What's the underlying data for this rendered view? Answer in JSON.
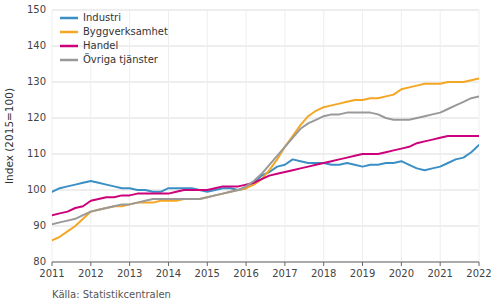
{
  "chart_data": {
    "type": "line",
    "ylabel": "Index (2015=100)",
    "source": "Källa: Statistikcentralen",
    "xlim": [
      2011,
      2022
    ],
    "xticks": [
      2011,
      2012,
      2013,
      2014,
      2015,
      2016,
      2017,
      2018,
      2019,
      2020,
      2021,
      2022
    ],
    "ylim": [
      80,
      150
    ],
    "yticks": [
      80,
      90,
      100,
      110,
      120,
      130,
      140,
      150
    ],
    "grid": true,
    "legend": "upper-left",
    "x": [
      2011.0,
      2011.2,
      2011.4,
      2011.6,
      2011.8,
      2012.0,
      2012.2,
      2012.4,
      2012.6,
      2012.8,
      2013.0,
      2013.2,
      2013.4,
      2013.6,
      2013.8,
      2014.0,
      2014.2,
      2014.4,
      2014.6,
      2014.8,
      2015.0,
      2015.2,
      2015.4,
      2015.6,
      2015.8,
      2016.0,
      2016.2,
      2016.4,
      2016.6,
      2016.8,
      2017.0,
      2017.2,
      2017.4,
      2017.6,
      2017.8,
      2018.0,
      2018.2,
      2018.4,
      2018.6,
      2018.8,
      2019.0,
      2019.2,
      2019.4,
      2019.6,
      2019.8,
      2020.0,
      2020.2,
      2020.4,
      2020.6,
      2020.8,
      2021.0,
      2021.2,
      2021.4,
      2021.6,
      2021.8,
      2022.0
    ],
    "series": [
      {
        "name": "Industri",
        "color": "#3b8fc4",
        "values": [
          99.5,
          100.5,
          101.0,
          101.5,
          102.0,
          102.5,
          102.0,
          101.5,
          101.0,
          100.5,
          100.5,
          100.0,
          100.0,
          99.5,
          99.5,
          100.5,
          100.5,
          100.5,
          100.5,
          100.0,
          99.5,
          100.0,
          100.5,
          100.5,
          100.0,
          100.5,
          102.0,
          104.0,
          105.0,
          106.5,
          107.0,
          108.5,
          108.0,
          107.5,
          107.5,
          107.5,
          107.0,
          107.0,
          107.5,
          107.0,
          106.5,
          107.0,
          107.0,
          107.5,
          107.5,
          108.0,
          107.0,
          106.0,
          105.5,
          106.0,
          106.5,
          107.5,
          108.5,
          109.0,
          110.5,
          112.5
        ]
      },
      {
        "name": "Byggverksamhet",
        "color": "#f5a623",
        "values": [
          86.0,
          87.0,
          88.5,
          90.0,
          92.0,
          94.0,
          94.5,
          95.0,
          95.5,
          95.5,
          96.0,
          96.5,
          96.5,
          96.5,
          97.0,
          97.0,
          97.0,
          97.5,
          97.5,
          97.5,
          98.0,
          98.5,
          99.0,
          99.5,
          100.0,
          100.5,
          101.5,
          103.0,
          105.5,
          108.5,
          112.0,
          115.0,
          118.0,
          120.5,
          122.0,
          123.0,
          123.5,
          124.0,
          124.5,
          125.0,
          125.0,
          125.5,
          125.5,
          126.0,
          126.5,
          128.0,
          128.5,
          129.0,
          129.5,
          129.5,
          129.5,
          130.0,
          130.0,
          130.0,
          130.5,
          131.0
        ]
      },
      {
        "name": "Handel",
        "color": "#cc007a",
        "values": [
          93.0,
          93.5,
          94.0,
          95.0,
          95.5,
          97.0,
          97.5,
          98.0,
          98.0,
          98.5,
          98.5,
          99.0,
          99.0,
          99.0,
          99.0,
          99.0,
          99.5,
          100.0,
          100.0,
          100.0,
          100.0,
          100.5,
          101.0,
          101.0,
          101.0,
          101.5,
          102.0,
          103.0,
          104.0,
          104.5,
          105.0,
          105.5,
          106.0,
          106.5,
          107.0,
          107.5,
          108.0,
          108.5,
          109.0,
          109.5,
          110.0,
          110.0,
          110.0,
          110.5,
          111.0,
          111.5,
          112.0,
          113.0,
          113.5,
          114.0,
          114.5,
          115.0,
          115.0,
          115.0,
          115.0,
          115.0
        ]
      },
      {
        "name": "Övriga tjänster",
        "color": "#999999",
        "values": [
          90.5,
          91.0,
          91.5,
          92.0,
          93.0,
          94.0,
          94.5,
          95.0,
          95.5,
          96.0,
          96.0,
          96.5,
          97.0,
          97.5,
          97.5,
          97.5,
          97.5,
          97.5,
          97.5,
          97.5,
          98.0,
          98.5,
          99.0,
          99.5,
          100.0,
          101.0,
          102.5,
          104.5,
          107.0,
          109.5,
          112.0,
          114.5,
          117.0,
          118.5,
          119.5,
          120.5,
          121.0,
          121.0,
          121.5,
          121.5,
          121.5,
          121.5,
          121.0,
          120.0,
          119.5,
          119.5,
          119.5,
          120.0,
          120.5,
          121.0,
          121.5,
          122.5,
          123.5,
          124.5,
          125.5,
          126.0
        ]
      }
    ]
  }
}
